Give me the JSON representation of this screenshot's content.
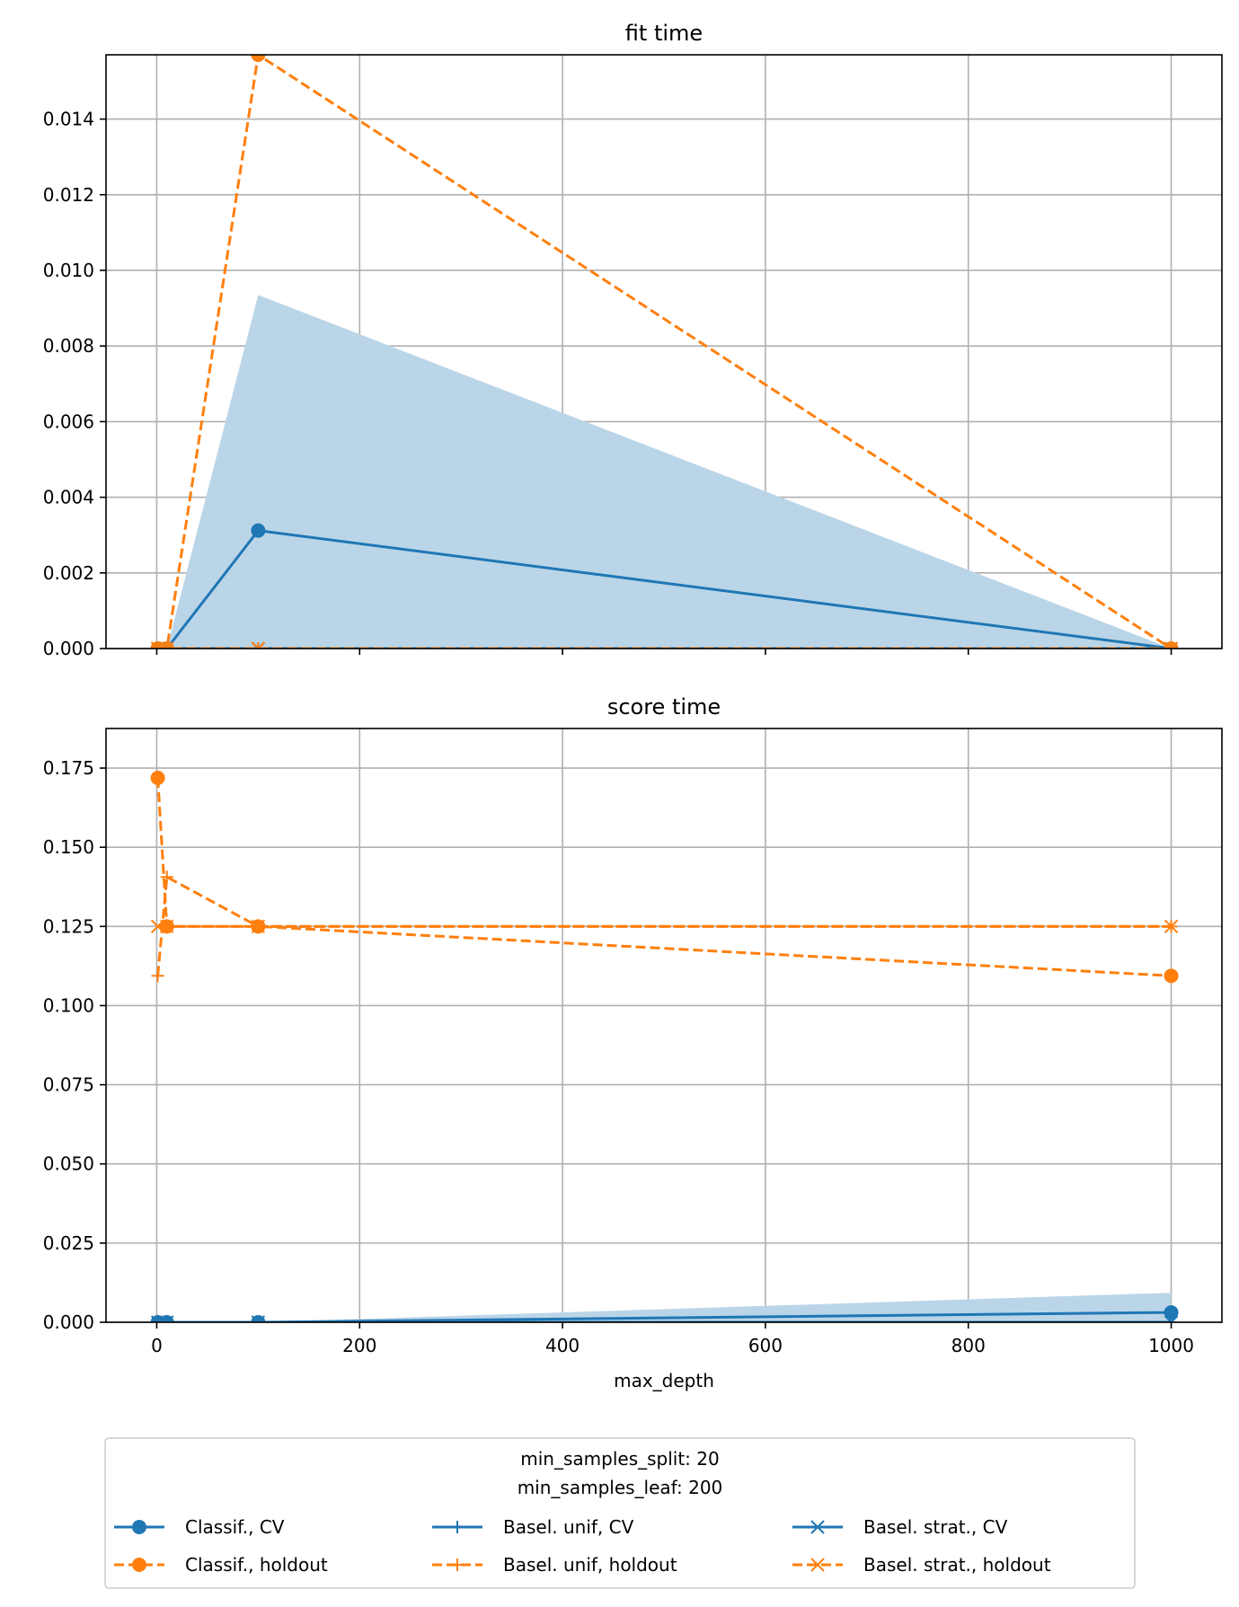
{
  "colors": {
    "classif": "#1f77b4",
    "holdout": "#ff7f0e",
    "band": "#bbd5e8",
    "grid": "#b0b0b0"
  },
  "legend": {
    "title_line1": "min_samples_split: 20",
    "title_line2": "min_samples_leaf: 200",
    "placement": "bottom-center",
    "entries": [
      {
        "label": "Classif., CV",
        "marker": "circle",
        "style": "solid",
        "color": "classif"
      },
      {
        "label": "Classif., holdout",
        "marker": "circle",
        "style": "dashed",
        "color": "holdout"
      },
      {
        "label": "Basel. unif, CV",
        "marker": "plus",
        "style": "solid",
        "color": "classif"
      },
      {
        "label": "Basel. unif, holdout",
        "marker": "plus",
        "style": "dashed",
        "color": "holdout"
      },
      {
        "label": "Basel. strat., CV",
        "marker": "x",
        "style": "solid",
        "color": "classif"
      },
      {
        "label": "Basel. strat., holdout",
        "marker": "x",
        "style": "dashed",
        "color": "holdout"
      }
    ]
  },
  "chart_data": [
    {
      "type": "line",
      "title": "fit time",
      "xlabel": "",
      "ylabel": "",
      "xlim": [
        -50,
        1050
      ],
      "ylim": [
        0,
        0.0157
      ],
      "xticks": [
        0,
        200,
        400,
        600,
        800,
        1000
      ],
      "show_xticklabels": false,
      "yticks": [
        0,
        0.002,
        0.004,
        0.006,
        0.008,
        0.01,
        0.012,
        0.014
      ],
      "yticklabels": [
        "0.000",
        "0.002",
        "0.004",
        "0.006",
        "0.008",
        "0.010",
        "0.012",
        "0.014"
      ],
      "grid": true,
      "x": [
        1,
        10,
        100,
        1000
      ],
      "band": {
        "series": "Classif., CV",
        "lower": [
          0,
          0,
          0,
          0
        ],
        "upper": [
          0,
          0,
          0.00935,
          0
        ]
      },
      "series": [
        {
          "name": "Classif., CV",
          "marker": "circle",
          "style": "solid",
          "color": "classif",
          "values": [
            0,
            0,
            0.00312,
            0
          ]
        },
        {
          "name": "Classif., holdout",
          "marker": "circle",
          "style": "dashed",
          "color": "holdout",
          "values": [
            0,
            0,
            0.0157,
            0
          ]
        },
        {
          "name": "Basel. unif, CV",
          "marker": "plus",
          "style": "solid",
          "color": "classif",
          "values": [
            0,
            0,
            0,
            0
          ]
        },
        {
          "name": "Basel. unif, holdout",
          "marker": "plus",
          "style": "dashed",
          "color": "holdout",
          "values": [
            0,
            0,
            0,
            0
          ]
        },
        {
          "name": "Basel. strat., CV",
          "marker": "x",
          "style": "solid",
          "color": "classif",
          "values": [
            0,
            0,
            0,
            0
          ]
        },
        {
          "name": "Basel. strat., holdout",
          "marker": "x",
          "style": "dashed",
          "color": "holdout",
          "values": [
            0,
            0,
            0,
            0
          ]
        }
      ]
    },
    {
      "type": "line",
      "title": "score time",
      "xlabel": "max_depth",
      "ylabel": "",
      "xlim": [
        -50,
        1050
      ],
      "ylim": [
        0,
        0.1875
      ],
      "xticks": [
        0,
        200,
        400,
        600,
        800,
        1000
      ],
      "xticklabels": [
        "0",
        "200",
        "400",
        "600",
        "800",
        "1000"
      ],
      "show_xticklabels": true,
      "yticks": [
        0,
        0.025,
        0.05,
        0.075,
        0.1,
        0.125,
        0.15,
        0.175
      ],
      "yticklabels": [
        "0.000",
        "0.025",
        "0.050",
        "0.075",
        "0.100",
        "0.125",
        "0.150",
        "0.175"
      ],
      "grid": true,
      "x": [
        1,
        10,
        100,
        1000
      ],
      "band": {
        "series": "Classif., CV",
        "lower": [
          0,
          0,
          0,
          0
        ],
        "upper": [
          0,
          0,
          0,
          0.0093
        ]
      },
      "series": [
        {
          "name": "Classif., CV",
          "marker": "circle",
          "style": "solid",
          "color": "classif",
          "values": [
            0,
            0,
            0,
            0.0031
          ]
        },
        {
          "name": "Classif., holdout",
          "marker": "circle",
          "style": "dashed",
          "color": "holdout",
          "values": [
            0.1719,
            0.125,
            0.125,
            0.1094
          ]
        },
        {
          "name": "Basel. unif, CV",
          "marker": "plus",
          "style": "solid",
          "color": "classif",
          "values": [
            0,
            0,
            0,
            0
          ]
        },
        {
          "name": "Basel. unif, holdout",
          "marker": "plus",
          "style": "dashed",
          "color": "holdout",
          "values": [
            0.1094,
            0.1406,
            0.125,
            0.125
          ]
        },
        {
          "name": "Basel. strat., CV",
          "marker": "x",
          "style": "solid",
          "color": "classif",
          "values": [
            0,
            0,
            0,
            0
          ]
        },
        {
          "name": "Basel. strat., holdout",
          "marker": "x",
          "style": "dashed",
          "color": "holdout",
          "values": [
            0.125,
            0.125,
            0.125,
            0.125
          ]
        }
      ]
    }
  ]
}
